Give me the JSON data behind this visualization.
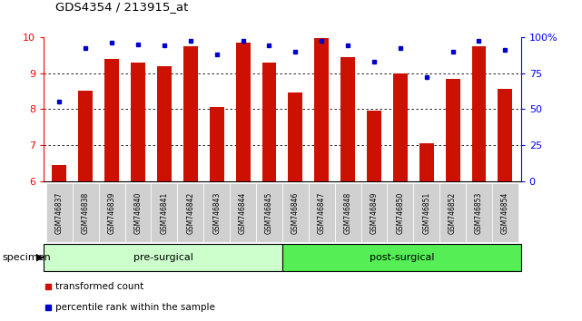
{
  "title": "GDS4354 / 213915_at",
  "samples": [
    "GSM746837",
    "GSM746838",
    "GSM746839",
    "GSM746840",
    "GSM746841",
    "GSM746842",
    "GSM746843",
    "GSM746844",
    "GSM746845",
    "GSM746846",
    "GSM746847",
    "GSM746848",
    "GSM746849",
    "GSM746850",
    "GSM746851",
    "GSM746852",
    "GSM746853",
    "GSM746854"
  ],
  "bar_values": [
    6.45,
    8.5,
    9.4,
    9.3,
    9.2,
    9.75,
    8.05,
    9.85,
    9.3,
    8.45,
    9.98,
    9.45,
    7.95,
    9.0,
    7.05,
    8.85,
    9.75,
    8.55
  ],
  "dot_values": [
    55,
    92,
    96,
    95,
    94,
    97,
    88,
    97,
    94,
    90,
    97,
    94,
    83,
    92,
    72,
    90,
    97,
    91
  ],
  "bar_color": "#cc1100",
  "dot_color": "#0000cc",
  "ylim_left": [
    6,
    10
  ],
  "ylim_right": [
    0,
    100
  ],
  "yticks_left": [
    6,
    7,
    8,
    9,
    10
  ],
  "yticks_right": [
    0,
    25,
    50,
    75,
    100
  ],
  "ytick_labels_right": [
    "0",
    "25",
    "50",
    "75",
    "100%"
  ],
  "pre_surgical_count": 9,
  "group_labels": [
    "pre-surgical",
    "post-surgical"
  ],
  "legend_items": [
    "transformed count",
    "percentile rank within the sample"
  ],
  "background_xticklabel": "#d0d0d0",
  "group_pre_color": "#ccffcc",
  "group_post_color": "#55ee55",
  "specimen_label": "specimen"
}
